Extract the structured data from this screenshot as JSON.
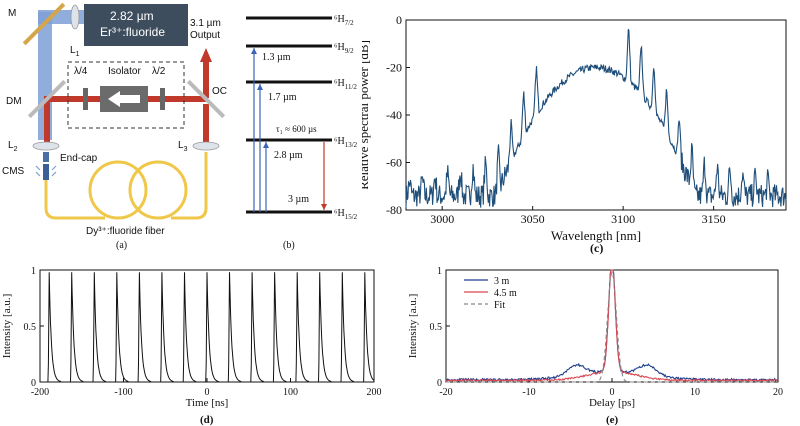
{
  "panel_a": {
    "label": "(a)",
    "laser_box": {
      "line1": "2.82 µm",
      "line2": "Er³⁺:fluoride"
    },
    "output": {
      "line1": "3.1 µm",
      "line2": "Output"
    },
    "labels": {
      "M": "M",
      "L1": "L",
      "L1sub": "1",
      "DM": "DM",
      "OC": "OC",
      "L2": "L",
      "L2sub": "2",
      "L3": "L",
      "L3sub": "3",
      "CMS": "CMS",
      "endcap": "End-cap",
      "isolator": "Isolator",
      "qwp": "λ/4",
      "hwp": "λ/2",
      "fiber": "Dy³⁺:fluoride fiber"
    },
    "colors": {
      "pump": "#7e9fd6",
      "signal": "#c0392b",
      "fiber": "#efc84a",
      "box": "#3d4d5e"
    }
  },
  "panel_b": {
    "label": "(b)",
    "levels": [
      {
        "name": "⁶H",
        "sub": "7/2"
      },
      {
        "name": "⁶H",
        "sub": "9/2"
      },
      {
        "name": "⁶H",
        "sub": "11/2"
      },
      {
        "name": "⁶H",
        "sub": "13/2"
      },
      {
        "name": "⁶H",
        "sub": "15/2"
      }
    ],
    "transitions": [
      {
        "label": "1.3 µm",
        "color": "#3b63b8"
      },
      {
        "label": "1.7 µm",
        "color": "#3b63b8"
      },
      {
        "label": "2.8 µm",
        "color": "#3b63b8"
      },
      {
        "label": "3 µm",
        "color": "#c0392b"
      }
    ],
    "lifetime": "τ₁ ≈ 600 µs"
  },
  "panel_c": {
    "label": "(c)",
    "chart_data": {
      "type": "line",
      "xlabel": "Wavelength [nm]",
      "ylabel": "Relative spectral power [dB]",
      "xlim": [
        2980,
        3190
      ],
      "ylim": [
        -80,
        0
      ],
      "xticks": [
        3000,
        3050,
        3100,
        3150
      ],
      "yticks": [
        -80,
        -60,
        -40,
        -20,
        0
      ],
      "envelope_peak_nm": 3085,
      "envelope_peak_db": -20,
      "mode_spacing_nm": 7,
      "color": "#1f4e79"
    }
  },
  "panel_d": {
    "label": "(d)",
    "chart_data": {
      "type": "line",
      "xlabel": "Time [ns]",
      "ylabel": "Intensity [a.u.]",
      "xlim": [
        -200,
        200
      ],
      "ylim": [
        0,
        1
      ],
      "xticks": [
        -200,
        -100,
        0,
        100,
        200
      ],
      "yticks": [
        0,
        0.5,
        1
      ],
      "pulse_period_ns": 27,
      "color": "#111111"
    }
  },
  "panel_e": {
    "label": "(e)",
    "chart_data": {
      "type": "line",
      "xlabel": "Delay [ps]",
      "ylabel": "Intensity [a.u.]",
      "xlim": [
        -20,
        20
      ],
      "ylim": [
        0,
        1
      ],
      "xticks": [
        -20,
        -10,
        0,
        10,
        20
      ],
      "yticks": [
        0,
        0.5,
        1
      ],
      "series": [
        {
          "name": "3 m",
          "color": "#1f3f8f",
          "dash": ""
        },
        {
          "name": "4.5 m",
          "color": "#d9474f",
          "dash": ""
        },
        {
          "name": "Fit",
          "color": "#888888",
          "dash": "4,3"
        }
      ]
    }
  }
}
